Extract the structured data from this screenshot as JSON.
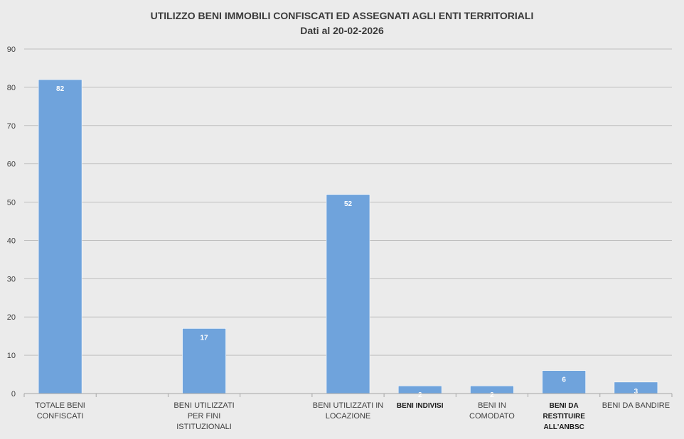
{
  "chart_data": {
    "type": "bar",
    "title": "UTILIZZO BENI IMMOBILI CONFISCATI ED ASSEGNATI AGLI ENTI TERRITORIALI",
    "subtitle": "Dati al 20-02-2026",
    "xlabel": "",
    "ylabel": "",
    "ylim": [
      0,
      90
    ],
    "yticks": [
      "0",
      "10",
      "20",
      "30",
      "40",
      "50",
      "60",
      "70",
      "80",
      "90"
    ],
    "grid": true,
    "legend": "none",
    "bar_color": "#6fa3dc",
    "slots": 9,
    "categories": [
      {
        "label_lines": [
          "TOTALE BENI",
          "CONFISCATI"
        ],
        "slot": 0,
        "bold": false
      },
      {
        "label_lines": [
          "BENI UTILIZZATI",
          "PER FINI",
          "ISTITUZIONALI"
        ],
        "slot": 2,
        "bold": false
      },
      {
        "label_lines": [
          "BENI UTILIZZATI IN",
          "LOCAZIONE"
        ],
        "slot": 4,
        "bold": false
      },
      {
        "label_lines": [
          "BENI INDIVISI"
        ],
        "slot": 5,
        "bold": true
      },
      {
        "label_lines": [
          "BENI  IN",
          "COMODATO"
        ],
        "slot": 6,
        "bold": false
      },
      {
        "label_lines": [
          "BENI DA",
          "RESTITUIRE",
          "ALL'ANBSC"
        ],
        "slot": 7,
        "bold": true
      },
      {
        "label_lines": [
          "BENI DA BANDIRE"
        ],
        "slot": 8,
        "bold": false
      }
    ],
    "values": [
      82,
      17,
      52,
      2,
      2,
      6,
      3
    ],
    "data_labels": [
      "82",
      "17",
      "52",
      "2",
      "2",
      "6",
      "3"
    ]
  }
}
